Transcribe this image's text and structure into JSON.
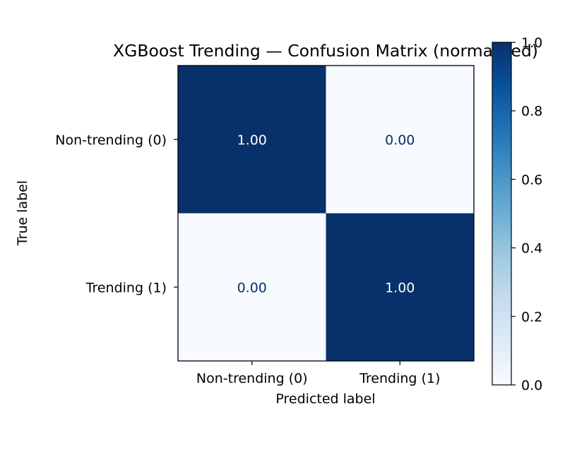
{
  "chart_data": {
    "type": "heatmap",
    "title": "XGBoost Trending — Confusion Matrix (normalized)",
    "xlabel": "Predicted label",
    "ylabel": "True label",
    "x_categories": [
      "Non-trending (0)",
      "Trending (1)"
    ],
    "y_categories": [
      "Non-trending (0)",
      "Trending (1)"
    ],
    "values": [
      [
        1.0,
        0.0
      ],
      [
        0.0,
        1.0
      ]
    ],
    "cell_labels": [
      [
        "1.00",
        "0.00"
      ],
      [
        "0.00",
        "1.00"
      ]
    ],
    "colormap": "Blues",
    "colors": {
      "low": "#f7fbff",
      "high": "#08306b",
      "text_on_dark": "#ffffff",
      "text_on_light": "#08306b"
    },
    "colorbar": {
      "range": [
        0,
        1
      ],
      "ticks": [
        0.0,
        0.2,
        0.4,
        0.6,
        0.8,
        1.0
      ],
      "tick_labels": [
        "0.0",
        "0.2",
        "0.4",
        "0.6",
        "0.8",
        "1.0"
      ]
    }
  }
}
